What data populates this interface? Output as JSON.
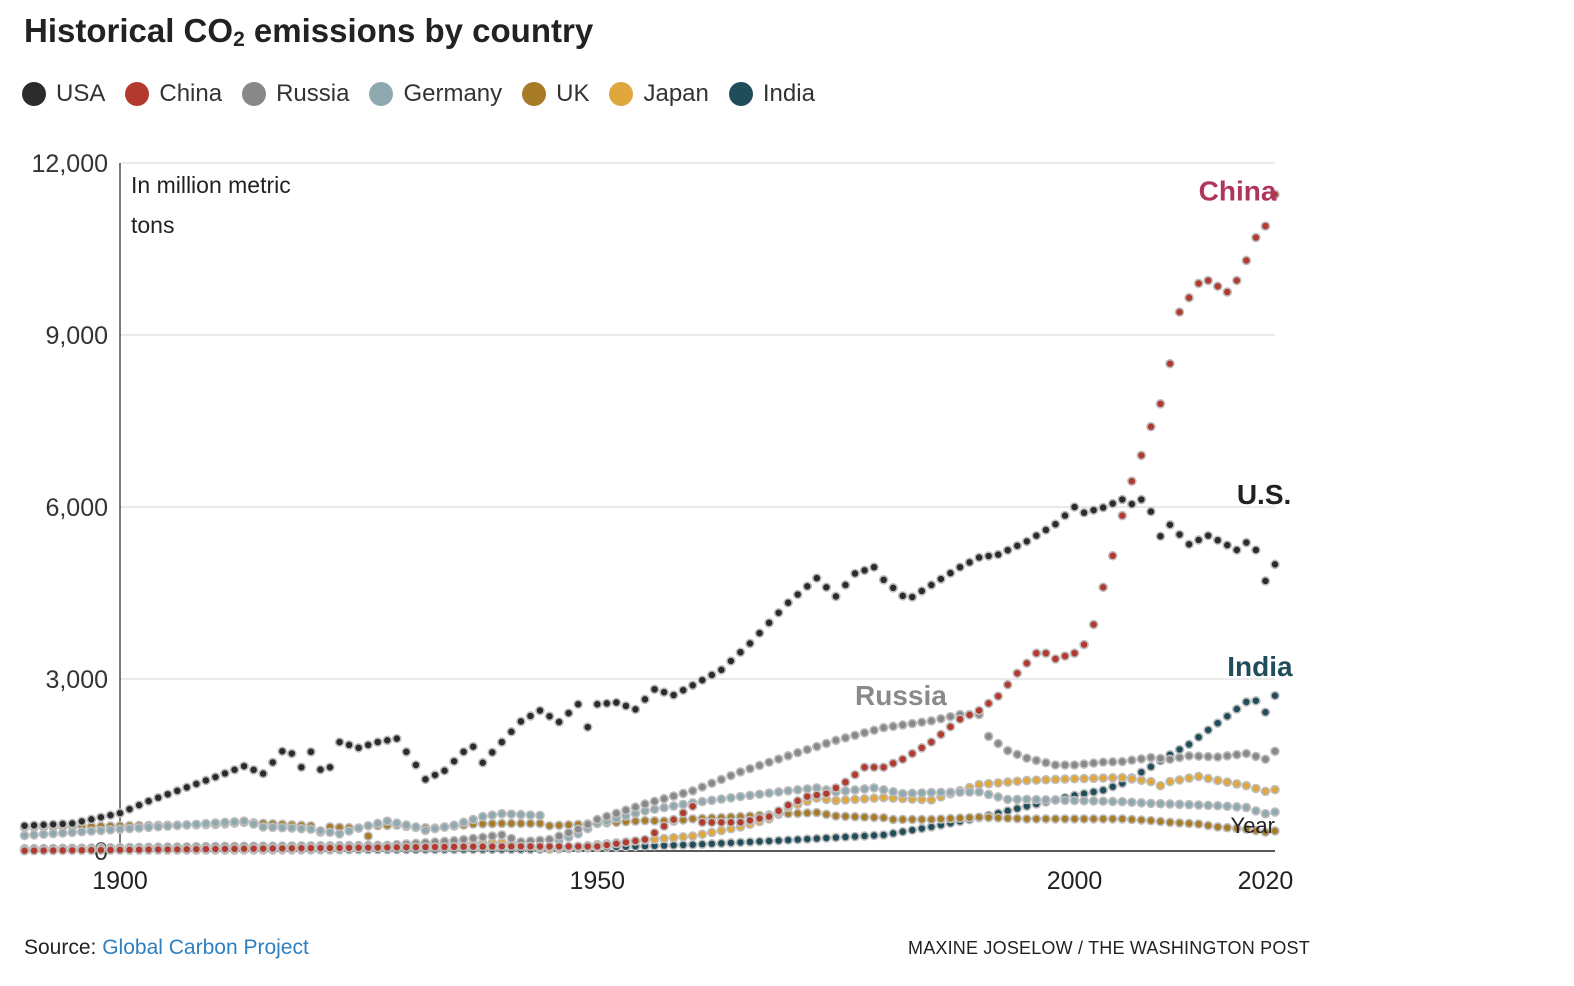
{
  "header": {
    "title_main": "Historical CO",
    "title_sub": "2",
    "title_rest": " emissions by country"
  },
  "legend": [
    {
      "label": "USA",
      "color": "#2b2b2b"
    },
    {
      "label": "China",
      "color": "#b23a2e"
    },
    {
      "label": "Russia",
      "color": "#888888"
    },
    {
      "label": "Germany",
      "color": "#8fa9b0"
    },
    {
      "label": "UK",
      "color": "#a87b26"
    },
    {
      "label": "Japan",
      "color": "#e0a83c"
    },
    {
      "label": "India",
      "color": "#1f4d5a"
    }
  ],
  "footer": {
    "source_label": "Source: ",
    "source_link": "Global Carbon Project",
    "credit": "MAXINE JOSELOW / THE WASHINGTON POST"
  },
  "chart_data": {
    "type": "scatter",
    "unit_note": "In million metric tons",
    "xlabel": "Year",
    "ylabel": "",
    "xlim": [
      1890,
      2020
    ],
    "ylim": [
      0,
      12000
    ],
    "yticks": [
      "12,000",
      "9,000",
      "6,000",
      "3,000",
      "0"
    ],
    "xticks": [
      "1900",
      "1950",
      "2000",
      "2020"
    ],
    "grid": true,
    "annotations": [
      {
        "text": "China",
        "color": "#b0355a",
        "year": 2013,
        "value": 11350
      },
      {
        "text": "U.S.",
        "color": "#222222",
        "year": 2017,
        "value": 6050
      },
      {
        "text": "India",
        "color": "#1f4d5a",
        "year": 2016,
        "value": 3050
      },
      {
        "text": "Russia",
        "color": "#8a8a8a",
        "year": 1977,
        "value": 2550
      }
    ],
    "series": [
      {
        "name": "USA",
        "color": "#2b2b2b",
        "keypoints": [
          [
            1890,
            440
          ],
          [
            1895,
            480
          ],
          [
            1900,
            660
          ],
          [
            1903,
            870
          ],
          [
            1907,
            1110
          ],
          [
            1910,
            1290
          ],
          [
            1913,
            1480
          ],
          [
            1915,
            1350
          ],
          [
            1917,
            1740
          ],
          [
            1918,
            1700
          ],
          [
            1919,
            1460
          ],
          [
            1920,
            1730
          ],
          [
            1921,
            1420
          ],
          [
            1922,
            1460
          ],
          [
            1923,
            1900
          ],
          [
            1925,
            1800
          ],
          [
            1927,
            1900
          ],
          [
            1929,
            1960
          ],
          [
            1930,
            1730
          ],
          [
            1931,
            1500
          ],
          [
            1932,
            1250
          ],
          [
            1934,
            1400
          ],
          [
            1936,
            1730
          ],
          [
            1937,
            1820
          ],
          [
            1938,
            1540
          ],
          [
            1940,
            1900
          ],
          [
            1942,
            2260
          ],
          [
            1944,
            2450
          ],
          [
            1946,
            2250
          ],
          [
            1948,
            2560
          ],
          [
            1949,
            2160
          ],
          [
            1950,
            2560
          ],
          [
            1952,
            2590
          ],
          [
            1954,
            2470
          ],
          [
            1956,
            2820
          ],
          [
            1958,
            2720
          ],
          [
            1960,
            2890
          ],
          [
            1963,
            3160
          ],
          [
            1966,
            3620
          ],
          [
            1968,
            3980
          ],
          [
            1970,
            4330
          ],
          [
            1973,
            4760
          ],
          [
            1975,
            4440
          ],
          [
            1977,
            4840
          ],
          [
            1979,
            4950
          ],
          [
            1980,
            4730
          ],
          [
            1982,
            4450
          ],
          [
            1983,
            4430
          ],
          [
            1985,
            4640
          ],
          [
            1988,
            4950
          ],
          [
            1990,
            5120
          ],
          [
            1992,
            5170
          ],
          [
            1995,
            5400
          ],
          [
            1998,
            5700
          ],
          [
            2000,
            6000
          ],
          [
            2001,
            5900
          ],
          [
            2003,
            5990
          ],
          [
            2005,
            6130
          ],
          [
            2006,
            6050
          ],
          [
            2007,
            6130
          ],
          [
            2008,
            5920
          ],
          [
            2009,
            5490
          ],
          [
            2010,
            5690
          ],
          [
            2012,
            5350
          ],
          [
            2014,
            5500
          ],
          [
            2015,
            5420
          ],
          [
            2017,
            5250
          ],
          [
            2018,
            5380
          ],
          [
            2019,
            5250
          ],
          [
            2020,
            4710
          ],
          [
            2021,
            5000
          ]
        ]
      },
      {
        "name": "China",
        "color": "#b23a2e",
        "keypoints": [
          [
            1890,
            5
          ],
          [
            1940,
            80
          ],
          [
            1950,
            80
          ],
          [
            1955,
            200
          ],
          [
            1960,
            780
          ],
          [
            1961,
            500
          ],
          [
            1965,
            500
          ],
          [
            1968,
            600
          ],
          [
            1970,
            800
          ],
          [
            1972,
            950
          ],
          [
            1974,
            1000
          ],
          [
            1976,
            1200
          ],
          [
            1978,
            1460
          ],
          [
            1980,
            1460
          ],
          [
            1982,
            1600
          ],
          [
            1985,
            1900
          ],
          [
            1988,
            2300
          ],
          [
            1990,
            2450
          ],
          [
            1992,
            2700
          ],
          [
            1994,
            3100
          ],
          [
            1996,
            3450
          ],
          [
            1997,
            3450
          ],
          [
            1998,
            3350
          ],
          [
            1999,
            3400
          ],
          [
            2000,
            3450
          ],
          [
            2001,
            3600
          ],
          [
            2002,
            3950
          ],
          [
            2003,
            4600
          ],
          [
            2004,
            5150
          ],
          [
            2005,
            5850
          ],
          [
            2006,
            6450
          ],
          [
            2007,
            6900
          ],
          [
            2008,
            7400
          ],
          [
            2009,
            7800
          ],
          [
            2010,
            8500
          ],
          [
            2011,
            9400
          ],
          [
            2012,
            9650
          ],
          [
            2013,
            9900
          ],
          [
            2014,
            9950
          ],
          [
            2015,
            9850
          ],
          [
            2016,
            9750
          ],
          [
            2017,
            9950
          ],
          [
            2018,
            10300
          ],
          [
            2019,
            10700
          ],
          [
            2020,
            10900
          ],
          [
            2021,
            11450
          ]
        ]
      },
      {
        "name": "Russia",
        "color": "#888888",
        "keypoints": [
          [
            1890,
            40
          ],
          [
            1910,
            80
          ],
          [
            1928,
            100
          ],
          [
            1935,
            180
          ],
          [
            1940,
            280
          ],
          [
            1942,
            160
          ],
          [
            1945,
            200
          ],
          [
            1948,
            380
          ],
          [
            1950,
            550
          ],
          [
            1955,
            820
          ],
          [
            1960,
            1050
          ],
          [
            1965,
            1380
          ],
          [
            1970,
            1660
          ],
          [
            1975,
            1930
          ],
          [
            1980,
            2150
          ],
          [
            1985,
            2270
          ],
          [
            1988,
            2380
          ],
          [
            1990,
            2380
          ],
          [
            1991,
            2000
          ],
          [
            1993,
            1750
          ],
          [
            1995,
            1620
          ],
          [
            1998,
            1500
          ],
          [
            2000,
            1500
          ],
          [
            2003,
            1550
          ],
          [
            2005,
            1560
          ],
          [
            2008,
            1630
          ],
          [
            2010,
            1600
          ],
          [
            2012,
            1660
          ],
          [
            2015,
            1640
          ],
          [
            2018,
            1700
          ],
          [
            2020,
            1600
          ],
          [
            2021,
            1740
          ]
        ]
      },
      {
        "name": "Germany",
        "color": "#8fa9b0",
        "keypoints": [
          [
            1890,
            270
          ],
          [
            1900,
            380
          ],
          [
            1913,
            520
          ],
          [
            1915,
            420
          ],
          [
            1918,
            400
          ],
          [
            1920,
            380
          ],
          [
            1923,
            300
          ],
          [
            1925,
            400
          ],
          [
            1928,
            520
          ],
          [
            1931,
            420
          ],
          [
            1932,
            360
          ],
          [
            1935,
            450
          ],
          [
            1938,
            600
          ],
          [
            1940,
            650
          ],
          [
            1944,
            620
          ],
          [
            1945,
            200
          ],
          [
            1946,
            180
          ],
          [
            1948,
            300
          ],
          [
            1950,
            480
          ],
          [
            1955,
            700
          ],
          [
            1960,
            840
          ],
          [
            1965,
            950
          ],
          [
            1970,
            1050
          ],
          [
            1973,
            1100
          ],
          [
            1975,
            1030
          ],
          [
            1979,
            1100
          ],
          [
            1982,
            1000
          ],
          [
            1985,
            1020
          ],
          [
            1990,
            1030
          ],
          [
            1993,
            900
          ],
          [
            1995,
            900
          ],
          [
            2000,
            880
          ],
          [
            2005,
            860
          ],
          [
            2008,
            830
          ],
          [
            2010,
            820
          ],
          [
            2015,
            790
          ],
          [
            2018,
            760
          ],
          [
            2019,
            700
          ],
          [
            2020,
            650
          ],
          [
            2021,
            680
          ]
        ]
      },
      {
        "name": "UK",
        "color": "#a87b26",
        "keypoints": [
          [
            1890,
            410
          ],
          [
            1900,
            440
          ],
          [
            1910,
            460
          ],
          [
            1913,
            500
          ],
          [
            1920,
            440
          ],
          [
            1921,
            330
          ],
          [
            1922,
            420
          ],
          [
            1925,
            400
          ],
          [
            1926,
            260
          ],
          [
            1927,
            440
          ],
          [
            1929,
            450
          ],
          [
            1931,
            410
          ],
          [
            1933,
            400
          ],
          [
            1937,
            470
          ],
          [
            1940,
            480
          ],
          [
            1944,
            480
          ],
          [
            1945,
            440
          ],
          [
            1950,
            480
          ],
          [
            1955,
            530
          ],
          [
            1958,
            520
          ],
          [
            1960,
            560
          ],
          [
            1965,
            600
          ],
          [
            1970,
            650
          ],
          [
            1973,
            670
          ],
          [
            1975,
            610
          ],
          [
            1980,
            580
          ],
          [
            1981,
            550
          ],
          [
            1985,
            550
          ],
          [
            1990,
            590
          ],
          [
            1995,
            560
          ],
          [
            2000,
            560
          ],
          [
            2005,
            560
          ],
          [
            2008,
            530
          ],
          [
            2010,
            500
          ],
          [
            2013,
            470
          ],
          [
            2015,
            420
          ],
          [
            2018,
            380
          ],
          [
            2020,
            330
          ],
          [
            2021,
            350
          ]
        ]
      },
      {
        "name": "Japan",
        "color": "#e0a83c",
        "keypoints": [
          [
            1890,
            10
          ],
          [
            1910,
            40
          ],
          [
            1920,
            70
          ],
          [
            1930,
            100
          ],
          [
            1940,
            150
          ],
          [
            1945,
            40
          ],
          [
            1950,
            110
          ],
          [
            1955,
            190
          ],
          [
            1960,
            260
          ],
          [
            1965,
            420
          ],
          [
            1968,
            560
          ],
          [
            1970,
            760
          ],
          [
            1973,
            920
          ],
          [
            1975,
            880
          ],
          [
            1980,
            930
          ],
          [
            1985,
            890
          ],
          [
            1990,
            1160
          ],
          [
            1995,
            1230
          ],
          [
            2000,
            1260
          ],
          [
            2005,
            1280
          ],
          [
            2008,
            1210
          ],
          [
            2009,
            1140
          ],
          [
            2010,
            1210
          ],
          [
            2013,
            1300
          ],
          [
            2015,
            1230
          ],
          [
            2018,
            1140
          ],
          [
            2020,
            1040
          ],
          [
            2021,
            1070
          ]
        ]
      },
      {
        "name": "India",
        "color": "#1f4d5a",
        "keypoints": [
          [
            1890,
            10
          ],
          [
            1920,
            20
          ],
          [
            1945,
            30
          ],
          [
            1950,
            60
          ],
          [
            1960,
            110
          ],
          [
            1970,
            190
          ],
          [
            1980,
            280
          ],
          [
            1985,
            420
          ],
          [
            1990,
            580
          ],
          [
            1995,
            780
          ],
          [
            2000,
            970
          ],
          [
            2003,
            1060
          ],
          [
            2005,
            1180
          ],
          [
            2008,
            1470
          ],
          [
            2010,
            1680
          ],
          [
            2012,
            1860
          ],
          [
            2014,
            2110
          ],
          [
            2016,
            2350
          ],
          [
            2018,
            2600
          ],
          [
            2019,
            2620
          ],
          [
            2020,
            2420
          ],
          [
            2021,
            2710
          ]
        ]
      }
    ]
  }
}
